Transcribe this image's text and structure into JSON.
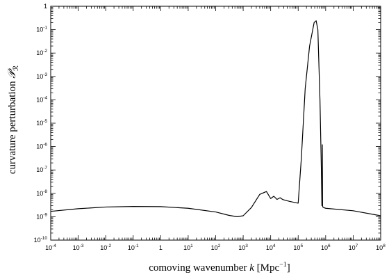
{
  "chart_data": {
    "type": "line",
    "title": "",
    "xlabel": "comoving wavenumber k [Mpc⁻¹]",
    "xlabel_parts": {
      "pre": "comoving wavenumber ",
      "var": "k",
      "mid": " [Mpc",
      "sup": "−1",
      "post": "]"
    },
    "ylabel": "curvature perturbation 𝒫ℛ",
    "ylabel_parts": {
      "pre": "curvature perturbation ",
      "sym": "𝒫",
      "sub": "ℛ"
    },
    "x_scale": "log",
    "y_scale": "log",
    "xlim": [
      0.0001,
      100000000
    ],
    "ylim": [
      1e-10,
      1
    ],
    "grid": false,
    "legend": "none",
    "line_color": "#000000",
    "x_ticks": [
      {
        "value": 0.0001,
        "base": "10",
        "exp": "-4"
      },
      {
        "value": 0.001,
        "base": "10",
        "exp": "-3"
      },
      {
        "value": 0.01,
        "base": "10",
        "exp": "-2"
      },
      {
        "value": 0.1,
        "base": "10",
        "exp": "-1"
      },
      {
        "value": 1,
        "base": "1",
        "exp": ""
      },
      {
        "value": 10,
        "base": "10",
        "exp": "1"
      },
      {
        "value": 100,
        "base": "10",
        "exp": "2"
      },
      {
        "value": 1000,
        "base": "10",
        "exp": "3"
      },
      {
        "value": 10000,
        "base": "10",
        "exp": "4"
      },
      {
        "value": 100000,
        "base": "10",
        "exp": "5"
      },
      {
        "value": 1000000,
        "base": "10",
        "exp": "6"
      },
      {
        "value": 10000000,
        "base": "10",
        "exp": "7"
      },
      {
        "value": 100000000,
        "base": "10",
        "exp": "8"
      }
    ],
    "y_ticks": [
      {
        "value": 1,
        "base": "1",
        "exp": ""
      },
      {
        "value": 0.1,
        "base": "10",
        "exp": "-1"
      },
      {
        "value": 0.01,
        "base": "10",
        "exp": "-2"
      },
      {
        "value": 0.001,
        "base": "10",
        "exp": "-3"
      },
      {
        "value": 0.0001,
        "base": "10",
        "exp": "-4"
      },
      {
        "value": 1e-05,
        "base": "10",
        "exp": "-5"
      },
      {
        "value": 1e-06,
        "base": "10",
        "exp": "-6"
      },
      {
        "value": 1e-07,
        "base": "10",
        "exp": "-7"
      },
      {
        "value": 1e-08,
        "base": "10",
        "exp": "-8"
      },
      {
        "value": 1e-09,
        "base": "10",
        "exp": "-9"
      },
      {
        "value": 1e-10,
        "base": "10",
        "exp": "-10"
      }
    ],
    "series": [
      {
        "x": [
          0.0001,
          0.001,
          0.01,
          0.1,
          1,
          10,
          100,
          300,
          600,
          1000,
          2000,
          4000,
          7000,
          10000,
          13000,
          17000,
          22000,
          27000,
          35000,
          50000,
          80000,
          100000,
          130000,
          180000,
          260000,
          380000,
          450000,
          520000,
          620000,
          700000,
          730000,
          750000,
          755000,
          760000,
          770000,
          790000,
          820000,
          1000000,
          10000000,
          100000000
        ],
        "y": [
          1.7e-09,
          2.2e-09,
          2.6e-09,
          2.75e-09,
          2.7e-09,
          2.3e-09,
          1.6e-09,
          1.15e-09,
          1e-09,
          1.1e-09,
          2.5e-09,
          9e-09,
          1.2e-08,
          6e-09,
          7.5e-09,
          5.5e-09,
          6.5e-09,
          5.5e-09,
          5e-09,
          4.5e-09,
          4e-09,
          3.8e-09,
          3e-07,
          0.0003,
          0.02,
          0.2,
          0.24,
          0.1,
          0.0001,
          8e-08,
          3e-09,
          5e-09,
          1.2e-06,
          4e-07,
          3e-09,
          2.6e-09,
          2.5e-09,
          2.3e-09,
          1.8e-09,
          1.1e-09
        ]
      }
    ]
  }
}
